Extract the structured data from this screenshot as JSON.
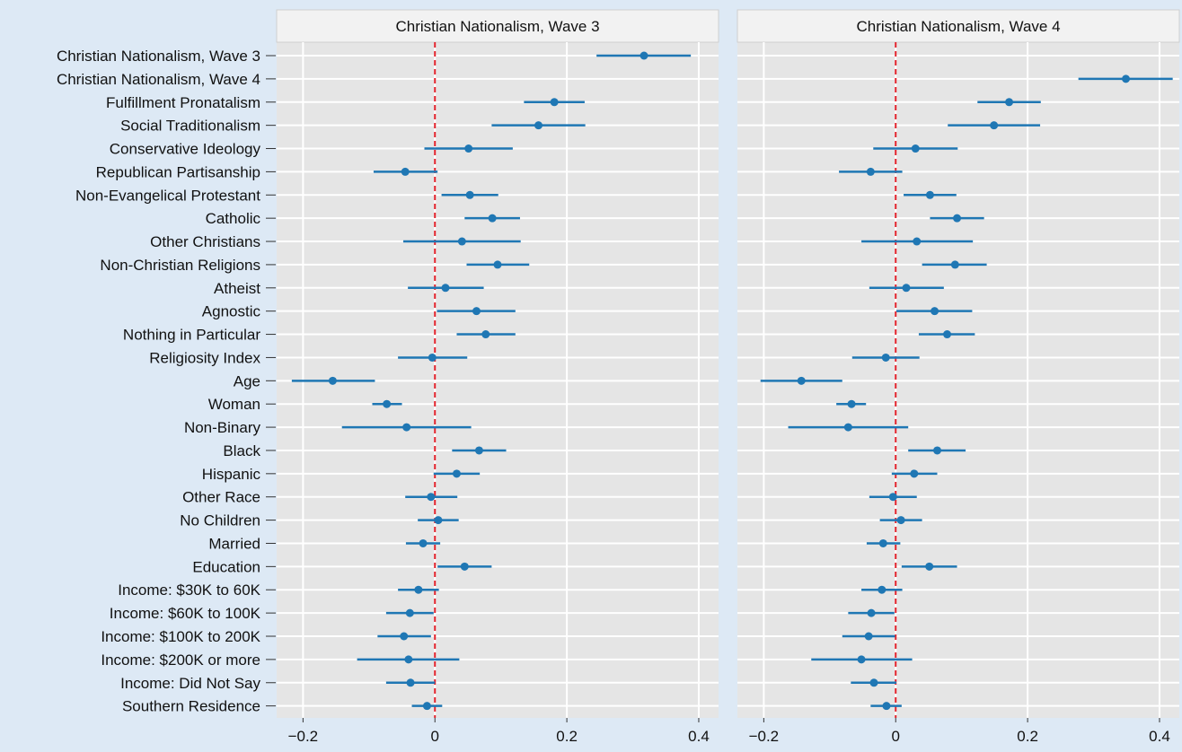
{
  "chart_data": {
    "type": "scatter",
    "subtype": "coefficient-plot-with-confidence-intervals",
    "panels": [
      {
        "title": "Christian Nationalism, Wave 3",
        "points": [
          {
            "label": "Christian Nationalism, Wave 3",
            "estimate": 0.317,
            "low": 0.245,
            "high": 0.388
          },
          {
            "label": "Christian Nationalism, Wave 4",
            "estimate": null,
            "low": null,
            "high": null
          },
          {
            "label": "Fulfillment Pronatalism",
            "estimate": 0.181,
            "low": 0.135,
            "high": 0.227
          },
          {
            "label": "Social Traditionalism",
            "estimate": 0.157,
            "low": 0.086,
            "high": 0.228
          },
          {
            "label": "Conservative Ideology",
            "estimate": 0.051,
            "low": -0.016,
            "high": 0.118
          },
          {
            "label": "Republican Partisanship",
            "estimate": -0.045,
            "low": -0.093,
            "high": 0.004
          },
          {
            "label": "Non-Evangelical Protestant",
            "estimate": 0.053,
            "low": 0.01,
            "high": 0.096
          },
          {
            "label": "Catholic",
            "estimate": 0.087,
            "low": 0.045,
            "high": 0.129
          },
          {
            "label": "Other Christians",
            "estimate": 0.041,
            "low": -0.048,
            "high": 0.13
          },
          {
            "label": "Non-Christian Religions",
            "estimate": 0.095,
            "low": 0.048,
            "high": 0.143
          },
          {
            "label": "Atheist",
            "estimate": 0.016,
            "low": -0.041,
            "high": 0.074
          },
          {
            "label": "Agnostic",
            "estimate": 0.063,
            "low": 0.003,
            "high": 0.122
          },
          {
            "label": "Nothing in Particular",
            "estimate": 0.077,
            "low": 0.033,
            "high": 0.122
          },
          {
            "label": "Religiosity Index",
            "estimate": -0.004,
            "low": -0.056,
            "high": 0.049
          },
          {
            "label": "Age",
            "estimate": -0.155,
            "low": -0.217,
            "high": -0.091
          },
          {
            "label": "Woman",
            "estimate": -0.073,
            "low": -0.095,
            "high": -0.05
          },
          {
            "label": "Non-Binary",
            "estimate": -0.043,
            "low": -0.141,
            "high": 0.055
          },
          {
            "label": "Black",
            "estimate": 0.067,
            "low": 0.026,
            "high": 0.108
          },
          {
            "label": "Hispanic",
            "estimate": 0.033,
            "low": -0.002,
            "high": 0.068
          },
          {
            "label": "Other Race",
            "estimate": -0.006,
            "low": -0.045,
            "high": 0.034
          },
          {
            "label": "No Children",
            "estimate": 0.005,
            "low": -0.026,
            "high": 0.036
          },
          {
            "label": "Married",
            "estimate": -0.018,
            "low": -0.044,
            "high": 0.008
          },
          {
            "label": "Education",
            "estimate": 0.045,
            "low": 0.004,
            "high": 0.086
          },
          {
            "label": "Income: $30K to 60K",
            "estimate": -0.025,
            "low": -0.056,
            "high": 0.006
          },
          {
            "label": "Income: $60K to 100K",
            "estimate": -0.038,
            "low": -0.074,
            "high": -0.002
          },
          {
            "label": "Income: $100K to 200K",
            "estimate": -0.047,
            "low": -0.087,
            "high": -0.006
          },
          {
            "label": "Income: $200K or more",
            "estimate": -0.04,
            "low": -0.118,
            "high": 0.037
          },
          {
            "label": "Income: Did Not Say",
            "estimate": -0.037,
            "low": -0.074,
            "high": 0.0
          },
          {
            "label": "Southern Residence",
            "estimate": -0.012,
            "low": -0.035,
            "high": 0.011
          }
        ]
      },
      {
        "title": "Christian Nationalism, Wave 4",
        "points": [
          {
            "label": "Christian Nationalism, Wave 3",
            "estimate": null,
            "low": null,
            "high": null
          },
          {
            "label": "Christian Nationalism, Wave 4",
            "estimate": 0.349,
            "low": 0.277,
            "high": 0.42
          },
          {
            "label": "Fulfillment Pronatalism",
            "estimate": 0.172,
            "low": 0.124,
            "high": 0.22
          },
          {
            "label": "Social Traditionalism",
            "estimate": 0.149,
            "low": 0.079,
            "high": 0.219
          },
          {
            "label": "Conservative Ideology",
            "estimate": 0.03,
            "low": -0.034,
            "high": 0.094
          },
          {
            "label": "Republican Partisanship",
            "estimate": -0.038,
            "low": -0.086,
            "high": 0.01
          },
          {
            "label": "Non-Evangelical Protestant",
            "estimate": 0.052,
            "low": 0.012,
            "high": 0.092
          },
          {
            "label": "Catholic",
            "estimate": 0.093,
            "low": 0.052,
            "high": 0.134
          },
          {
            "label": "Other Christians",
            "estimate": 0.032,
            "low": -0.052,
            "high": 0.117
          },
          {
            "label": "Non-Christian Religions",
            "estimate": 0.09,
            "low": 0.04,
            "high": 0.138
          },
          {
            "label": "Atheist",
            "estimate": 0.016,
            "low": -0.04,
            "high": 0.073
          },
          {
            "label": "Agnostic",
            "estimate": 0.059,
            "low": 0.001,
            "high": 0.116
          },
          {
            "label": "Nothing in Particular",
            "estimate": 0.078,
            "low": 0.035,
            "high": 0.12
          },
          {
            "label": "Religiosity Index",
            "estimate": -0.015,
            "low": -0.066,
            "high": 0.036
          },
          {
            "label": "Age",
            "estimate": -0.143,
            "low": -0.205,
            "high": -0.081
          },
          {
            "label": "Woman",
            "estimate": -0.067,
            "low": -0.09,
            "high": -0.045
          },
          {
            "label": "Non-Binary",
            "estimate": -0.072,
            "low": -0.163,
            "high": 0.019
          },
          {
            "label": "Black",
            "estimate": 0.063,
            "low": 0.019,
            "high": 0.106
          },
          {
            "label": "Hispanic",
            "estimate": 0.028,
            "low": -0.006,
            "high": 0.063
          },
          {
            "label": "Other Race",
            "estimate": -0.004,
            "low": -0.04,
            "high": 0.032
          },
          {
            "label": "No Children",
            "estimate": 0.008,
            "low": -0.024,
            "high": 0.04
          },
          {
            "label": "Married",
            "estimate": -0.019,
            "low": -0.044,
            "high": 0.007
          },
          {
            "label": "Education",
            "estimate": 0.051,
            "low": 0.009,
            "high": 0.093
          },
          {
            "label": "Income: $30K to 60K",
            "estimate": -0.021,
            "low": -0.052,
            "high": 0.01
          },
          {
            "label": "Income: $60K to 100K",
            "estimate": -0.037,
            "low": -0.072,
            "high": -0.002
          },
          {
            "label": "Income: $100K to 200K",
            "estimate": -0.041,
            "low": -0.081,
            "high": -0.001
          },
          {
            "label": "Income: $200K or more",
            "estimate": -0.052,
            "low": -0.128,
            "high": 0.025
          },
          {
            "label": "Income: Did Not Say",
            "estimate": -0.033,
            "low": -0.068,
            "high": 0.001
          },
          {
            "label": "Southern Residence",
            "estimate": -0.014,
            "low": -0.038,
            "high": 0.009
          }
        ]
      }
    ],
    "xlim": [
      -0.24,
      0.43
    ],
    "xticks": [
      -0.2,
      0,
      0.2,
      0.4
    ],
    "xtick_labels": [
      "−0.2",
      "0",
      "0.2",
      "0.4"
    ],
    "reference_line": {
      "x": 0,
      "style": "dashed",
      "color": "#e3232c"
    },
    "grid": true,
    "legend": "none",
    "colors": {
      "point": "#1f77b4",
      "panel_background": "#e5e5e5",
      "strip_background": "#f2f2f2",
      "page_background": "#dde9f5",
      "grid": "#ffffff"
    }
  }
}
